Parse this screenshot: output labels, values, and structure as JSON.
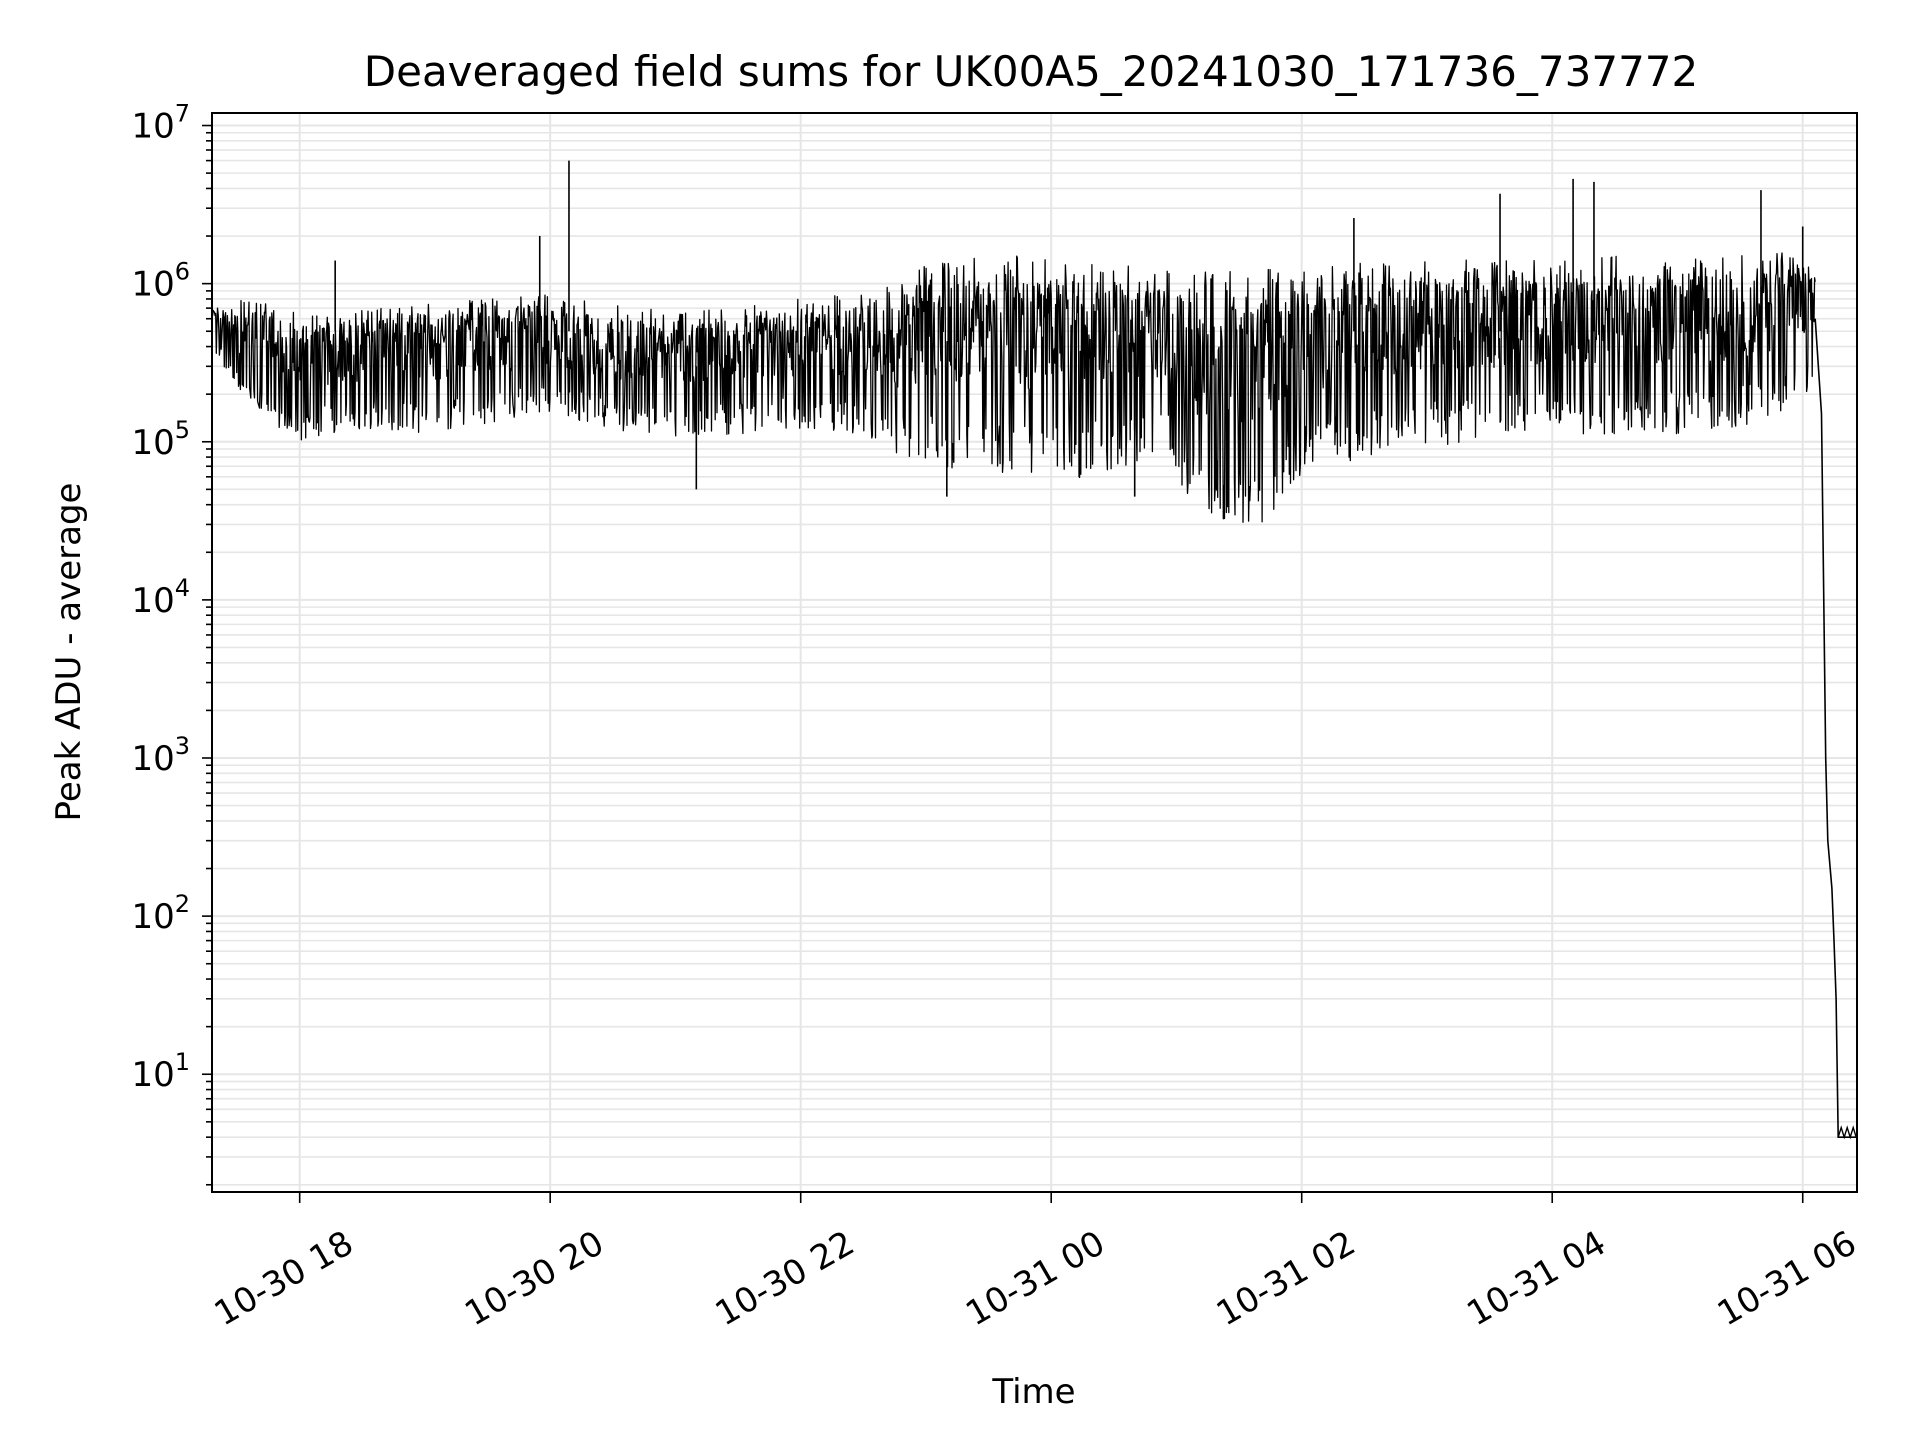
{
  "chart_data": {
    "type": "line",
    "title": "Deaveraged field sums for UK00A5_20241030_171736_737772",
    "xlabel": "Time",
    "ylabel": "Peak ADU - average",
    "yscale": "log",
    "ylim": [
      1.8,
      12000000
    ],
    "xlim": [
      "2024-10-30 17:18",
      "2024-10-31 06:26"
    ],
    "grid": true,
    "line_color": "#000000",
    "grid_color": "#e6e6e6",
    "x_ticks": [
      {
        "label": "10-30 18",
        "time": "2024-10-30 18:00"
      },
      {
        "label": "10-30 20",
        "time": "2024-10-30 20:00"
      },
      {
        "label": "10-30 22",
        "time": "2024-10-30 22:00"
      },
      {
        "label": "10-31 00",
        "time": "2024-10-31 00:00"
      },
      {
        "label": "10-31 02",
        "time": "2024-10-31 02:00"
      },
      {
        "label": "10-31 04",
        "time": "2024-10-31 04:00"
      },
      {
        "label": "10-31 06",
        "time": "2024-10-31 06:00"
      }
    ],
    "y_ticks": [
      {
        "base": "10",
        "exp": "1",
        "value": 10
      },
      {
        "base": "10",
        "exp": "2",
        "value": 100
      },
      {
        "base": "10",
        "exp": "3",
        "value": 1000
      },
      {
        "base": "10",
        "exp": "4",
        "value": 10000
      },
      {
        "base": "10",
        "exp": "5",
        "value": 100000
      },
      {
        "base": "10",
        "exp": "6",
        "value": 1000000
      },
      {
        "base": "10",
        "exp": "7",
        "value": 10000000
      }
    ],
    "envelope": {
      "x": [
        "2024-10-30 17:18",
        "2024-10-30 17:35",
        "2024-10-30 18:00",
        "2024-10-30 18:30",
        "2024-10-30 19:00",
        "2024-10-30 19:30",
        "2024-10-30 20:00",
        "2024-10-30 20:30",
        "2024-10-30 21:00",
        "2024-10-30 21:30",
        "2024-10-30 22:00",
        "2024-10-30 22:30",
        "2024-10-30 22:45",
        "2024-10-30 23:00",
        "2024-10-30 23:30",
        "2024-10-31 00:00",
        "2024-10-31 00:30",
        "2024-10-31 00:55",
        "2024-10-31 01:10",
        "2024-10-31 01:30",
        "2024-10-31 01:50",
        "2024-10-31 02:00",
        "2024-10-31 02:30",
        "2024-10-31 03:00",
        "2024-10-31 03:30",
        "2024-10-31 04:00",
        "2024-10-31 04:30",
        "2024-10-31 05:00",
        "2024-10-31 05:30",
        "2024-10-31 06:00",
        "2024-10-31 06:06"
      ],
      "high": [
        700000,
        850000,
        650000,
        700000,
        750000,
        800000,
        850000,
        750000,
        700000,
        750000,
        800000,
        900000,
        1000000,
        1400000,
        1500000,
        1500000,
        1450000,
        1300000,
        1200000,
        1200000,
        1250000,
        1250000,
        1350000,
        1400000,
        1450000,
        1500000,
        1500000,
        1500000,
        1500000,
        1600000,
        1300000
      ],
      "low": [
        400000,
        170000,
        100000,
        120000,
        110000,
        130000,
        150000,
        120000,
        100000,
        110000,
        120000,
        110000,
        80000,
        70000,
        60000,
        55000,
        65000,
        80000,
        32000,
        30000,
        32000,
        60000,
        80000,
        90000,
        100000,
        110000,
        110000,
        110000,
        120000,
        180000,
        250000
      ]
    },
    "spikes": [
      {
        "x": "2024-10-30 18:17",
        "y": 1400000
      },
      {
        "x": "2024-10-30 19:55",
        "y": 2000000
      },
      {
        "x": "2024-10-30 20:09",
        "y": 6000000
      },
      {
        "x": "2024-10-31 02:25",
        "y": 2600000
      },
      {
        "x": "2024-10-31 03:35",
        "y": 3700000
      },
      {
        "x": "2024-10-31 04:10",
        "y": 4600000
      },
      {
        "x": "2024-10-31 04:20",
        "y": 4400000
      },
      {
        "x": "2024-10-31 05:40",
        "y": 3900000
      },
      {
        "x": "2024-10-31 06:00",
        "y": 2300000
      },
      {
        "x": "2024-10-30 21:10",
        "y": 50000
      },
      {
        "x": "2024-10-30 23:10",
        "y": 45000
      },
      {
        "x": "2024-10-31 00:40",
        "y": 45000
      }
    ],
    "tail": {
      "x": [
        "2024-10-31 06:06",
        "2024-10-31 06:09",
        "2024-10-31 06:11",
        "2024-10-31 06:12",
        "2024-10-31 06:14",
        "2024-10-31 06:15",
        "2024-10-31 06:16",
        "2024-10-31 06:17",
        "2024-10-31 06:18",
        "2024-10-31 06:20",
        "2024-10-31 06:22",
        "2024-10-31 06:24",
        "2024-10-31 06:26"
      ],
      "y": [
        600000,
        150000,
        1000,
        300,
        150,
        70,
        30,
        4,
        4,
        4,
        4,
        4,
        4
      ]
    }
  }
}
